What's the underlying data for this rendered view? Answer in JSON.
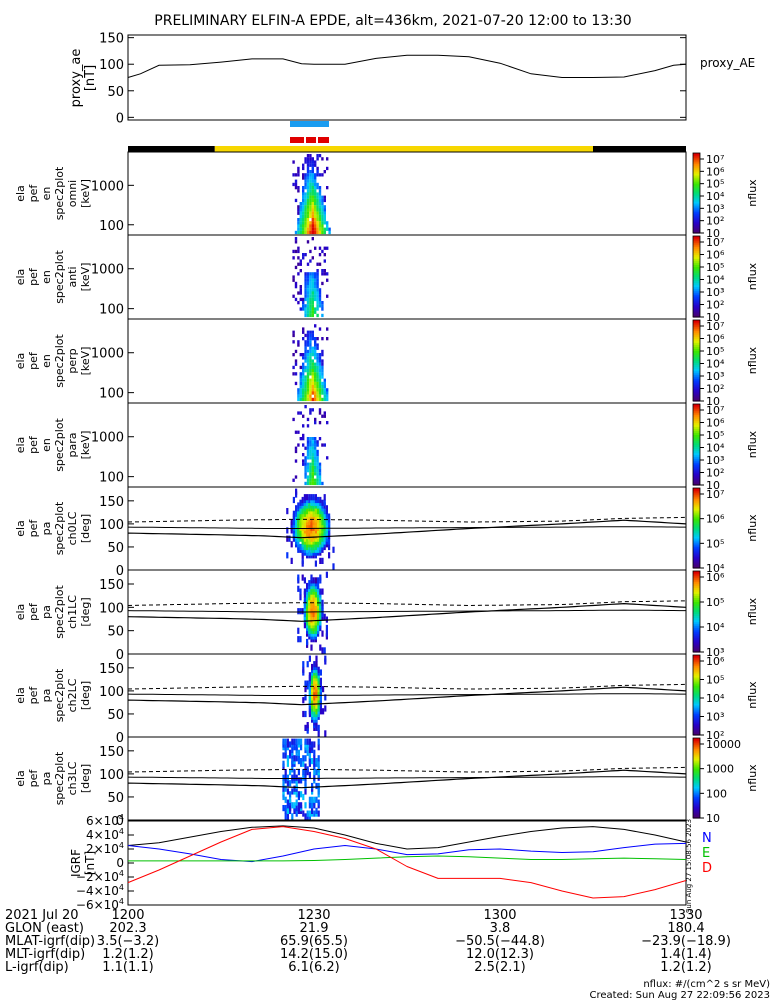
{
  "title": "PRELIMINARY ELFIN-A EPDE, alt=436km, 2021-07-20 12:00 to 13:30",
  "time_range_min": [
    0,
    90
  ],
  "ae_panel": {
    "ylabel": "proxy_ae",
    "yunit": "[nT]",
    "series_label": "proxy_AE",
    "yticks": [
      "0",
      "50",
      "100",
      "150"
    ],
    "ylim": [
      -5,
      155
    ],
    "times": [
      0,
      2,
      5,
      10,
      15,
      20,
      25,
      28,
      30,
      35,
      40,
      45,
      50,
      55,
      60,
      65,
      70,
      75,
      80,
      85,
      88,
      90
    ],
    "values": [
      75,
      82,
      98,
      99,
      104,
      110,
      110,
      101,
      100,
      100,
      111,
      117,
      117,
      114,
      102,
      82,
      75,
      75,
      76,
      88,
      98,
      100
    ]
  },
  "quality_bars": {
    "blue_label": "",
    "red_label": ""
  },
  "orbit_bar": {
    "segments": [
      {
        "from": 0,
        "to": 14,
        "color": "#000000"
      },
      {
        "from": 14,
        "to": 75,
        "color": "#f7d700"
      },
      {
        "from": 75,
        "to": 90,
        "color": "#000000"
      }
    ]
  },
  "spec_panels": [
    {
      "lines": [
        "ela",
        "pef",
        "en",
        "spec2plot",
        "omni"
      ],
      "unit": "[keV]",
      "type": "energy",
      "cb_labels": [
        "10⁷",
        "10⁶",
        "10⁵",
        "10⁴",
        "10³",
        "10²",
        "10"
      ],
      "cb_title": "nflux"
    },
    {
      "lines": [
        "ela",
        "pef",
        "en",
        "spec2plot",
        "anti"
      ],
      "unit": "[keV]",
      "type": "energy",
      "cb_labels": [
        "10⁷",
        "10⁶",
        "10⁵",
        "10⁴",
        "10³",
        "10²",
        "10"
      ],
      "cb_title": "nflux"
    },
    {
      "lines": [
        "ela",
        "pef",
        "en",
        "spec2plot",
        "perp"
      ],
      "unit": "[keV]",
      "type": "energy",
      "cb_labels": [
        "10⁷",
        "10⁶",
        "10⁵",
        "10⁴",
        "10³",
        "10²",
        "10"
      ],
      "cb_title": "nflux"
    },
    {
      "lines": [
        "ela",
        "pef",
        "en",
        "spec2plot",
        "para"
      ],
      "unit": "[keV]",
      "type": "energy",
      "cb_labels": [
        "10⁷",
        "10⁶",
        "10⁵",
        "10⁴",
        "10³",
        "10²",
        "10"
      ],
      "cb_title": "nflux"
    },
    {
      "lines": [
        "ela",
        "pef",
        "pa",
        "spec2plot",
        "ch0LC"
      ],
      "unit": "[deg]",
      "type": "pa",
      "cb_labels": [
        "10⁷",
        "10⁶",
        "10⁵",
        "10⁴"
      ],
      "cb_title": "nflux"
    },
    {
      "lines": [
        "ela",
        "pef",
        "pa",
        "spec2plot",
        "ch1LC"
      ],
      "unit": "[deg]",
      "type": "pa",
      "cb_labels": [
        "10⁶",
        "10⁵",
        "10⁴",
        "10³"
      ],
      "cb_title": "nflux"
    },
    {
      "lines": [
        "ela",
        "pef",
        "pa",
        "spec2plot",
        "ch2LC"
      ],
      "unit": "[deg]",
      "type": "pa",
      "cb_labels": [
        "10⁶",
        "10⁵",
        "10⁴",
        "10³",
        "10²"
      ],
      "cb_title": "nflux"
    },
    {
      "lines": [
        "ela",
        "pef",
        "pa",
        "spec2plot",
        "ch3LC"
      ],
      "unit": "[deg]",
      "type": "pa",
      "cb_labels": [
        "10000",
        "1000",
        "100",
        "10"
      ],
      "cb_title": "nflux"
    }
  ],
  "energy_ticks": [
    "100",
    "1000"
  ],
  "pa_ticks": [
    "0",
    "50",
    "100",
    "150"
  ],
  "pa_reference": {
    "times": [
      0,
      8,
      16,
      22,
      28,
      40,
      55,
      70,
      80,
      90
    ],
    "solid": [
      80,
      78,
      76,
      74,
      70,
      78,
      90,
      100,
      108,
      100
    ],
    "solid2": [
      93,
      92,
      91,
      90,
      90,
      91,
      92,
      93,
      94,
      93
    ],
    "dashed": [
      104,
      106,
      108,
      109,
      110,
      108,
      104,
      106,
      112,
      114
    ]
  },
  "bfield_panel": {
    "ylabel": "IGRF",
    "yunit": "[nT]",
    "ytick_mantissa": [
      "6×10",
      "4×10",
      "2×10",
      "0",
      "−2×10",
      "−4×10",
      "−6×10"
    ],
    "ytick_exponent": "4",
    "legend": [
      {
        "label": "N",
        "color": "#0000ff"
      },
      {
        "label": "E",
        "color": "#00c000"
      },
      {
        "label": "D",
        "color": "#ff0000"
      }
    ],
    "times": [
      0,
      5,
      10,
      15,
      20,
      25,
      30,
      35,
      40,
      45,
      50,
      55,
      60,
      65,
      70,
      75,
      80,
      85,
      90
    ],
    "total": [
      25000,
      29000,
      37000,
      45000,
      51000,
      53000,
      50000,
      40000,
      28000,
      20000,
      22000,
      30000,
      38000,
      45000,
      50000,
      52000,
      48000,
      40000,
      30000
    ],
    "N": [
      25000,
      20000,
      13000,
      5000,
      2000,
      10000,
      20000,
      25000,
      20000,
      12000,
      13000,
      19000,
      20000,
      17000,
      15000,
      16000,
      22000,
      27000,
      28000
    ],
    "E": [
      3000,
      3000,
      3000,
      3000,
      3000,
      3000,
      3500,
      5000,
      7000,
      9000,
      10000,
      9000,
      7000,
      5000,
      5000,
      6000,
      7000,
      6000,
      5000
    ],
    "D": [
      -28000,
      -10000,
      10000,
      30000,
      48000,
      52000,
      45000,
      35000,
      20000,
      -5000,
      -22000,
      -22000,
      -22000,
      -28000,
      -40000,
      -50000,
      -48000,
      -38000,
      -25000
    ]
  },
  "footer": {
    "rows": [
      {
        "label": "2021 Jul 20",
        "values": [
          "1200",
          "1230",
          "1300",
          "1330"
        ]
      },
      {
        "label": "GLON (east)",
        "values": [
          "202.3",
          "21.9",
          "3.8",
          "180.4"
        ]
      },
      {
        "label": "MLAT-igrf(dip)",
        "values": [
          "3.5(−3.2)",
          "65.9(65.5)",
          "−50.5(−44.8)",
          "−23.9(−18.9)"
        ]
      },
      {
        "label": "MLT-igrf(dip)",
        "values": [
          "1.2(1.2)",
          "14.2(15.0)",
          "12.0(12.3)",
          "1.4(1.4)"
        ]
      },
      {
        "label": "L-igrf(dip)",
        "values": [
          "1.1(1.1)",
          "6.1(6.2)",
          "2.5(2.1)",
          "1.2(1.2)"
        ]
      }
    ],
    "nflux_note": "nflux: #/(cm^2 s sr MeV)",
    "created": "Created: Sun Aug 27 22:09:56 2023",
    "side_stamp": "Sun Aug 27 15:08:56 2023"
  }
}
